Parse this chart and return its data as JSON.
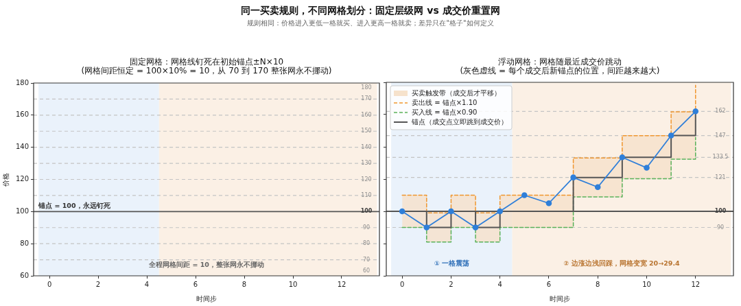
{
  "chart_data": [
    {
      "type": "other",
      "title": "同一买卖规则，不同网格划分：固定层级网 vs 成交价重置网",
      "subtitle": "规则相同：价格进入更低一格就买、进入更高一格就卖；差异只在\"格子\"如何定义"
    },
    {
      "type": "line",
      "title": "固定网格：网格线钉死在初始锚点±N×10",
      "subtitle": "(网格间距恒定 = 100×10% = 10，从 70 到 170 整张网永不挪动)",
      "xlabel": "时间步",
      "ylabel": "价格",
      "xlim": [
        -0.65,
        13.55
      ],
      "ylim": [
        60,
        180
      ],
      "xticks": [
        0,
        2,
        4,
        6,
        8,
        10,
        12
      ],
      "yticks": [
        60,
        80,
        100,
        120,
        140,
        160,
        180
      ],
      "bands": [
        {
          "axis": "x",
          "from": -0.45,
          "to": 4.5,
          "color": "#eaf2fb"
        },
        {
          "axis": "x",
          "from": 4.5,
          "to": 13.45,
          "color": "#fbf0e5"
        }
      ],
      "ref_lines": [
        {
          "axis": "y",
          "value": 70,
          "label": "70",
          "color": "#c4c4c4",
          "line_style": "dashed"
        },
        {
          "axis": "y",
          "value": 80,
          "label": "80",
          "color": "#c4c4c4",
          "line_style": "dashed"
        },
        {
          "axis": "y",
          "value": 90,
          "label": "90",
          "color": "#c4c4c4",
          "line_style": "dashed"
        },
        {
          "axis": "y",
          "value": 100,
          "label": "100",
          "color": "#555555",
          "line_style": "solid"
        },
        {
          "axis": "y",
          "value": 110,
          "label": "110",
          "color": "#c4c4c4",
          "line_style": "dashed"
        },
        {
          "axis": "y",
          "value": 120,
          "label": "120",
          "color": "#c4c4c4",
          "line_style": "dashed"
        },
        {
          "axis": "y",
          "value": 130,
          "label": "130",
          "color": "#c4c4c4",
          "line_style": "dashed"
        },
        {
          "axis": "y",
          "value": 140,
          "label": "140",
          "color": "#c4c4c4",
          "line_style": "dashed"
        },
        {
          "axis": "y",
          "value": 150,
          "label": "150",
          "color": "#c4c4c4",
          "line_style": "dashed"
        },
        {
          "axis": "y",
          "value": 160,
          "label": "160",
          "color": "#c4c4c4",
          "line_style": "dashed"
        },
        {
          "axis": "y",
          "value": 170,
          "label": "170",
          "color": "#c4c4c4",
          "line_style": "dashed"
        }
      ],
      "annotations": [
        {
          "text": "锚点 = 100，永远钉死",
          "x": -0.45,
          "y": 100
        },
        "全程网格间距 = 10，整张网永不挪动",
        "180",
        "60"
      ]
    },
    {
      "type": "step",
      "title": "浮动网格：网格随最近成交价跳动",
      "subtitle": "(灰色虚线 = 每个成交后新锚点的位置，间距越来越大)",
      "xlabel": "时间步",
      "xlim": [
        -0.65,
        13.55
      ],
      "ylim": [
        60,
        180
      ],
      "xticks": [
        0,
        2,
        4,
        6,
        8,
        10,
        12
      ],
      "yticks": [
        60,
        80,
        100,
        120,
        140,
        160,
        180
      ],
      "tick_labels": "x",
      "legend": "top left",
      "x": [
        0,
        1,
        2,
        3,
        4,
        5,
        6,
        7,
        8,
        9,
        10,
        11,
        12
      ],
      "series": [
        {
          "name": "买卖触发带（成交后才平移）",
          "type": "step",
          "color": "#f6e2cc",
          "values": [
            null,
            null,
            null,
            null,
            null,
            null,
            null,
            null,
            null,
            null,
            null,
            null,
            null
          ],
          "lower": [
            90,
            81,
            90,
            81,
            90,
            90,
            90,
            108.9,
            108.9,
            120.2,
            120.2,
            132.3,
            145.8
          ],
          "upper": [
            110,
            99,
            110,
            99,
            110,
            110,
            110,
            133.1,
            133.1,
            146.9,
            146.9,
            161.7,
            178.2
          ]
        },
        {
          "name": "卖出线 = 锚点×1.10",
          "type": "step",
          "color": "#f0962e",
          "line_style": "dashed",
          "values": [
            110,
            99,
            110,
            99,
            110,
            110,
            110,
            133.1,
            133.1,
            146.9,
            146.9,
            161.7,
            178.2
          ]
        },
        {
          "name": "买入线 = 锚点×0.90",
          "type": "step",
          "color": "#59b159",
          "line_style": "dashed",
          "values": [
            90,
            81,
            90,
            81,
            90,
            90,
            90,
            108.9,
            108.9,
            120.2,
            120.2,
            132.3,
            145.8
          ]
        },
        {
          "name": "锚点（成交点立即跳到成交价）",
          "type": "step",
          "color": "#555555",
          "line_style": "solid",
          "values": [
            100,
            90,
            100,
            90,
            100,
            100,
            100,
            121,
            121,
            133.5,
            133.5,
            147,
            162
          ]
        },
        {
          "type": "line",
          "color": "#2f7fd9",
          "marker": "circle",
          "values": [
            100,
            90,
            100,
            90,
            100,
            110,
            105,
            121,
            115,
            133.5,
            127,
            147,
            162
          ]
        }
      ],
      "bands": [
        {
          "axis": "x",
          "from": -0.45,
          "to": 4.5,
          "color": "#eaf2fb",
          "label": "① 一格震荡"
        },
        {
          "axis": "x",
          "from": 4.5,
          "to": 13.45,
          "color": "#fbf0e5",
          "label": "② 边涨边浅回踩，网格变宽 20→29.4"
        }
      ],
      "ref_lines": [
        {
          "axis": "y",
          "value": 90,
          "label": "90",
          "color": "#c4c4c4",
          "line_style": "dashed"
        },
        {
          "axis": "y",
          "value": 100,
          "label": "100",
          "color": "#555555",
          "line_style": "solid"
        },
        {
          "axis": "y",
          "value": 121,
          "label": "121",
          "color": "#c4c4c4",
          "line_style": "dashed"
        },
        {
          "axis": "y",
          "value": 133.5,
          "label": "133.5",
          "color": "#c4c4c4",
          "line_style": "dashed"
        },
        {
          "axis": "y",
          "value": 147,
          "label": "147",
          "color": "#c4c4c4",
          "line_style": "dashed"
        },
        {
          "axis": "y",
          "value": 162,
          "label": "162",
          "color": "#c4c4c4",
          "line_style": "dashed"
        }
      ]
    }
  ]
}
